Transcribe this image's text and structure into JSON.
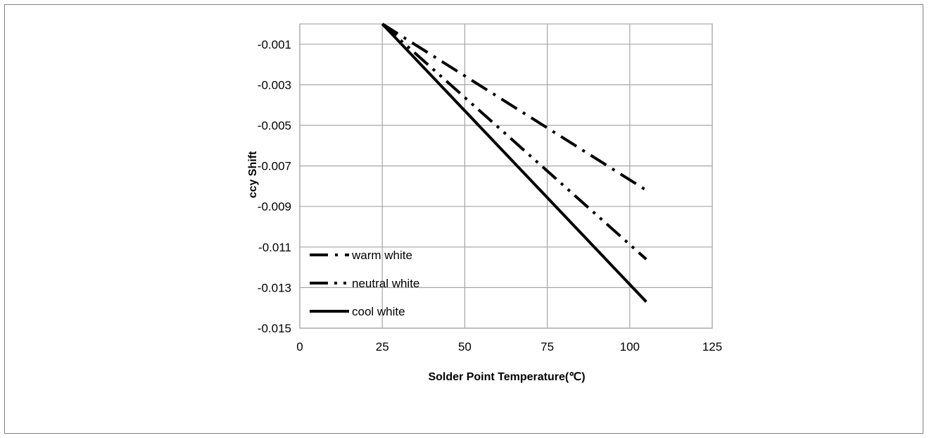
{
  "chart_data": {
    "type": "line",
    "xlabel": "Solder Point Temperature(℃)",
    "ylabel": "ccy Shift",
    "xlim": [
      0,
      125
    ],
    "ylim": [
      -0.015,
      0
    ],
    "xticks": [
      0,
      25,
      50,
      75,
      100,
      125
    ],
    "yticks": [
      -0.001,
      -0.003,
      -0.005,
      -0.007,
      -0.009,
      -0.011,
      -0.013,
      -0.015
    ],
    "xtick_labels": [
      "0",
      "25",
      "50",
      "75",
      "100",
      "125"
    ],
    "ytick_labels": [
      "-0.001",
      "-0.003",
      "-0.005",
      "-0.007",
      "-0.009",
      "-0.011",
      "-0.013",
      "-0.015"
    ],
    "grid": true,
    "legend_position": "bottom-left",
    "series": [
      {
        "name": "warm white",
        "x": [
          25,
          105
        ],
        "y": [
          0,
          -0.0082
        ],
        "style": "long-dash-dot"
      },
      {
        "name": "neutral white",
        "x": [
          25,
          105
        ],
        "y": [
          0,
          -0.0116
        ],
        "style": "long-dash-dot-dot"
      },
      {
        "name": "cool white",
        "x": [
          25,
          105
        ],
        "y": [
          0,
          -0.0137
        ],
        "style": "solid"
      }
    ],
    "colors": {
      "line": "#000000",
      "grid": "#a6a6a6"
    }
  }
}
